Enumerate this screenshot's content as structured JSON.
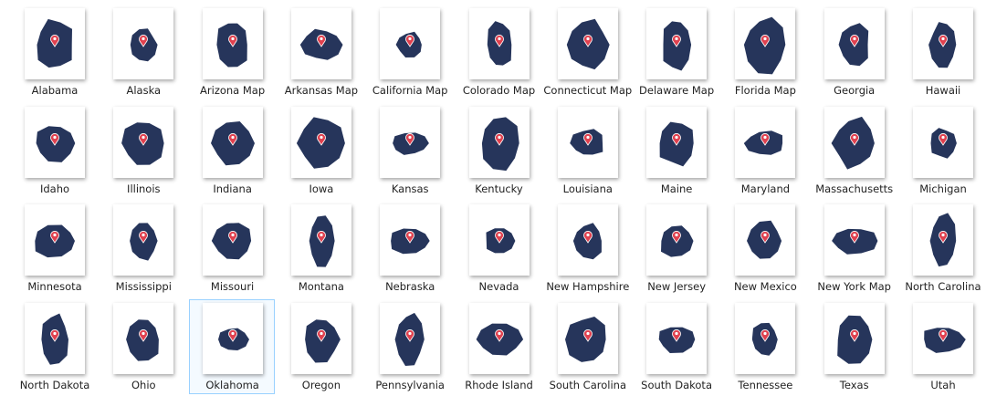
{
  "items": [
    {
      "label": "Alabama"
    },
    {
      "label": "Alaska"
    },
    {
      "label": "Arizona Map"
    },
    {
      "label": "Arkansas Map"
    },
    {
      "label": "California Map"
    },
    {
      "label": "Colorado Map"
    },
    {
      "label": "Connecticut Map"
    },
    {
      "label": "Delaware Map"
    },
    {
      "label": "Florida Map"
    },
    {
      "label": "Georgia"
    },
    {
      "label": "Hawaii"
    },
    {
      "label": "Idaho"
    },
    {
      "label": "Illinois"
    },
    {
      "label": "Indiana"
    },
    {
      "label": "Iowa"
    },
    {
      "label": "Kansas"
    },
    {
      "label": "Kentucky"
    },
    {
      "label": "Louisiana"
    },
    {
      "label": "Maine"
    },
    {
      "label": "Maryland"
    },
    {
      "label": "Massachusetts"
    },
    {
      "label": "Michigan"
    },
    {
      "label": "Minnesota"
    },
    {
      "label": "Mississippi"
    },
    {
      "label": "Missouri"
    },
    {
      "label": "Montana"
    },
    {
      "label": "Nebraska"
    },
    {
      "label": "Nevada"
    },
    {
      "label": "New Hampshire"
    },
    {
      "label": "New Jersey"
    },
    {
      "label": "New Mexico"
    },
    {
      "label": "New York Map"
    },
    {
      "label": "North Carolina"
    },
    {
      "label": "North Dakota"
    },
    {
      "label": "Ohio"
    },
    {
      "label": "Oklahoma",
      "selected": true
    },
    {
      "label": "Oregon"
    },
    {
      "label": "Pennsylvania"
    },
    {
      "label": "Rhode Island"
    },
    {
      "label": "South Carolina"
    },
    {
      "label": "South Dakota"
    },
    {
      "label": "Tennessee"
    },
    {
      "label": "Texas"
    },
    {
      "label": "Utah"
    }
  ]
}
